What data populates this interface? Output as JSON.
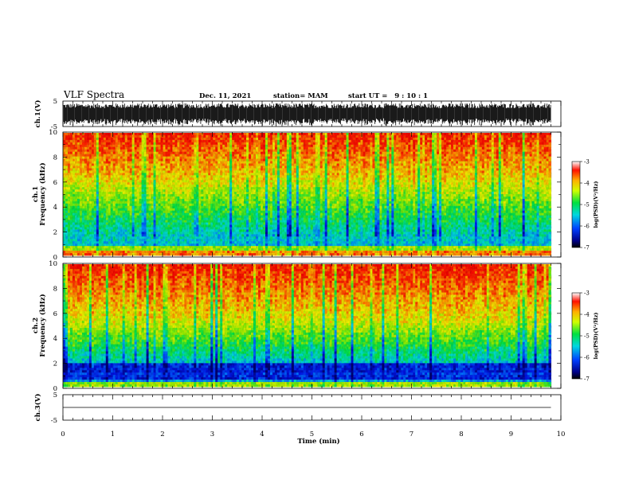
{
  "header": {
    "title": "VLF Spectra",
    "date": "Dec. 11, 2021",
    "station": "station= MAM",
    "start": "start UT =   9 : 10 : 1"
  },
  "colors": {
    "spectrum_low": "#0000c8",
    "spectrum_mid": "#00e050",
    "spectrum_high": "#ff1a00",
    "waveform": "#000000"
  },
  "chart_data": [
    {
      "type": "line",
      "panel": "ch1-waveform",
      "ylabel": "ch.1(V)",
      "yticks": [
        "5",
        "-5"
      ],
      "ylim": [
        -5,
        5
      ],
      "description_values": "dense noisy waveform filling roughly -4 to +4 V"
    },
    {
      "type": "heatmap",
      "panel": "ch1-spectrogram",
      "ylabel": "ch.1",
      "ylabel2": "Frequency (kHz)",
      "yticks": [
        "0",
        "2",
        "4",
        "6",
        "8",
        "10"
      ],
      "ylim": [
        0,
        10
      ],
      "xlim": [
        0,
        10
      ],
      "colorbar": {
        "label": "log(PSD)(V²/Hz)",
        "ticks": [
          "-3",
          "-4",
          "-5",
          "-6",
          "-7"
        ],
        "range": [
          -7,
          -3
        ]
      }
    },
    {
      "type": "heatmap",
      "panel": "ch2-spectrogram",
      "ylabel": "ch.2",
      "ylabel2": "Frequency (kHz)",
      "yticks": [
        "0",
        "2",
        "4",
        "6",
        "8",
        "10"
      ],
      "ylim": [
        0,
        10
      ],
      "xlim": [
        0,
        10
      ],
      "colorbar": {
        "label": "log(PSD)(V²/Hz)",
        "ticks": [
          "-3",
          "-4",
          "-5",
          "-6",
          "-7"
        ],
        "range": [
          -7,
          -3
        ]
      }
    },
    {
      "type": "line",
      "panel": "ch3-waveform",
      "ylabel": "ch.3(V)",
      "yticks": [
        "5",
        "-5"
      ],
      "ylim": [
        -5,
        5
      ],
      "x": [
        0,
        9.8
      ],
      "y": [
        0,
        0
      ]
    }
  ],
  "xaxis": {
    "label": "Time (min)",
    "ticks": [
      "0",
      "1",
      "2",
      "3",
      "4",
      "5",
      "6",
      "7",
      "8",
      "9",
      "10"
    ],
    "range": [
      0,
      10
    ],
    "data_end": 9.8
  }
}
